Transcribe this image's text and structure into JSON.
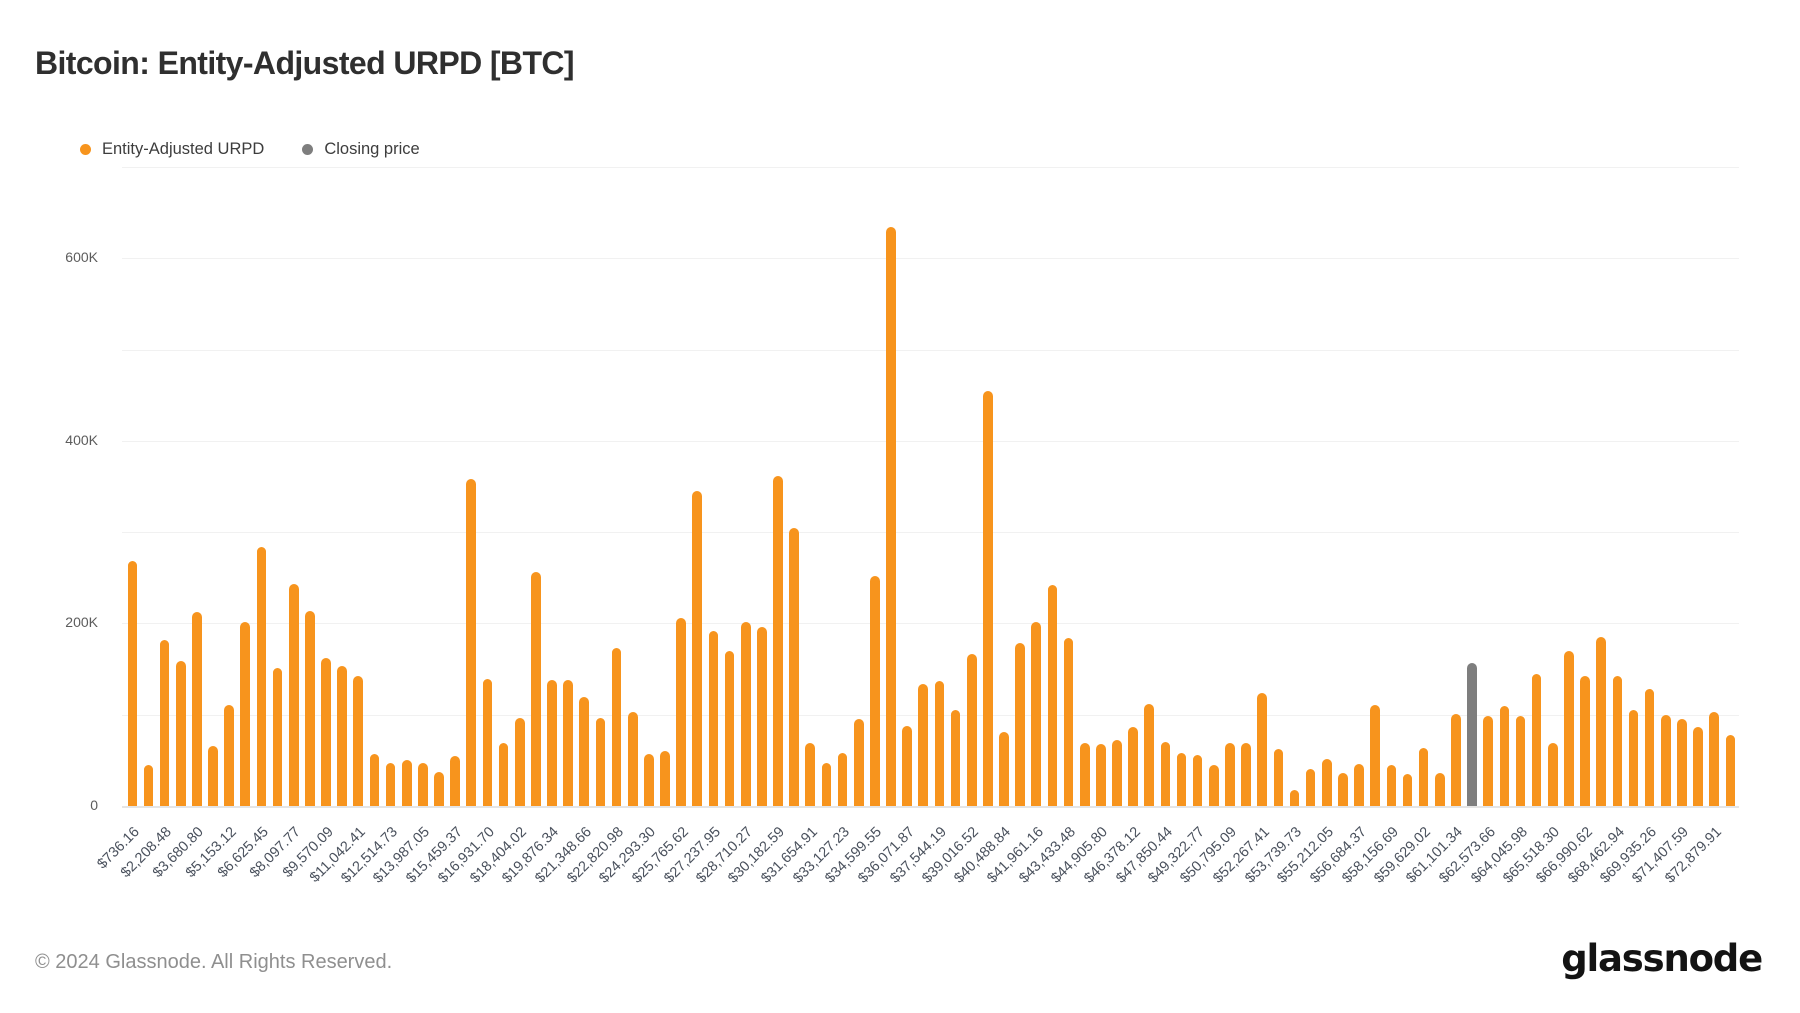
{
  "title": "Bitcoin: Entity-Adjusted URPD [BTC]",
  "legend": {
    "items": [
      {
        "label": "Entity-Adjusted URPD",
        "color": "#F7941D"
      },
      {
        "label": "Closing price",
        "color": "#7E7E7E"
      }
    ]
  },
  "footer": {
    "copyright": "© 2024 Glassnode. All Rights Reserved.",
    "brand": "glassnode"
  },
  "chart_data": {
    "type": "bar",
    "title": "Bitcoin: Entity-Adjusted URPD [BTC]",
    "xlabel": "",
    "ylabel": "",
    "ylim": [
      0,
      700000
    ],
    "ytick_values": [
      0,
      200000,
      400000,
      600000
    ],
    "ytick_labels": [
      "0",
      "200K",
      "400K",
      "600K"
    ],
    "grid": "horizontal every 100K",
    "legend_position": "top-left",
    "bar_color": "#F7941D",
    "closing_price_color": "#7E7E7E",
    "closing_price_bar_index": 83,
    "x_bin_labels": [
      "$736.16",
      "$2,208.48",
      "$3,680.80",
      "$5,153.12",
      "$6,625.45",
      "$8,097.77",
      "$9,570.09",
      "$11,042.41",
      "$12,514.73",
      "$13,987.05",
      "$15,459.37",
      "$16,931.70",
      "$18,404.02",
      "$19,876.34",
      "$21,348.66",
      "$22,820.98",
      "$24,293.30",
      "$25,765.62",
      "$27,237.95",
      "$28,710.27",
      "$30,182.59",
      "$31,654.91",
      "$33,127.23",
      "$34,599.55",
      "$36,071.87",
      "$37,544.19",
      "$39,016.52",
      "$40,488.84",
      "$41,961.16",
      "$43,433.48",
      "$44,905.80",
      "$46,378.12",
      "$47,850.44",
      "$49,322.77",
      "$50,795.09",
      "$52,267.41",
      "$53,739.73",
      "$55,212.05",
      "$56,684.37",
      "$58,156.69",
      "$59,629.02",
      "$61,101.34",
      "$62,573.66",
      "$64,045.98",
      "$65,518.30",
      "$66,990.62",
      "$68,462.94",
      "$69,935.26",
      "$71,407.59",
      "$72,879.91"
    ],
    "label_every_n_bars": 2,
    "values": [
      268000,
      45000,
      182000,
      159000,
      212000,
      66000,
      111000,
      201000,
      284000,
      151000,
      243000,
      214000,
      162000,
      153000,
      142000,
      57000,
      47000,
      50000,
      47000,
      37000,
      55000,
      358000,
      139000,
      69000,
      96000,
      256000,
      138000,
      138000,
      119000,
      96000,
      173000,
      103000,
      57000,
      60000,
      206000,
      345000,
      192000,
      170000,
      202000,
      196000,
      361000,
      305000,
      69000,
      47000,
      58000,
      95000,
      252000,
      634000,
      88000,
      134000,
      137000,
      105000,
      167000,
      454000,
      81000,
      179000,
      202000,
      242000,
      184000,
      69000,
      68000,
      72000,
      87000,
      112000,
      70000,
      58000,
      56000,
      45000,
      69000,
      69000,
      124000,
      62000,
      17000,
      41000,
      52000,
      36000,
      46000,
      111000,
      45000,
      35000,
      64000,
      36000,
      101000,
      157000,
      99000,
      109000,
      99000,
      145000,
      69000,
      170000,
      142000,
      185000,
      142000,
      105000,
      128000,
      100000,
      95000,
      87000,
      103000,
      78000
    ]
  }
}
